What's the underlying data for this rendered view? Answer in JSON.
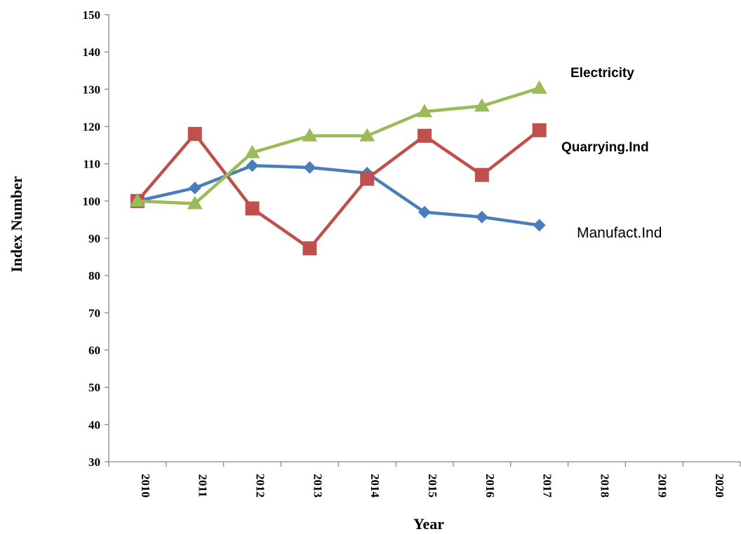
{
  "chart_data": {
    "type": "line",
    "xlabel": "Year",
    "ylabel": "Index Number",
    "categories": [
      "2010",
      "2011",
      "2012",
      "2013",
      "2014",
      "2015",
      "2016",
      "2017",
      "2018",
      "2019",
      "2020"
    ],
    "ylim": [
      30,
      150
    ],
    "yticks": [
      30,
      40,
      50,
      60,
      70,
      80,
      90,
      100,
      110,
      120,
      130,
      140,
      150
    ],
    "grid": false,
    "series": [
      {
        "name": "Manufact.Ind",
        "color": "#4a7ebb",
        "marker": "diamond",
        "values": [
          100,
          103.5,
          109.5,
          109,
          107.5,
          97,
          95.7,
          93.5,
          null,
          null,
          null
        ]
      },
      {
        "name": "Quarrying.Ind",
        "color": "#c0504d",
        "marker": "square",
        "values": [
          100,
          118,
          98,
          87.3,
          106,
          117.5,
          107,
          119,
          null,
          null,
          null
        ]
      },
      {
        "name": "Electricity",
        "color": "#9bbb59",
        "marker": "triangle",
        "values": [
          100,
          99.3,
          113,
          117.5,
          117.5,
          124,
          125.5,
          130.3,
          null,
          null,
          null
        ]
      }
    ]
  }
}
